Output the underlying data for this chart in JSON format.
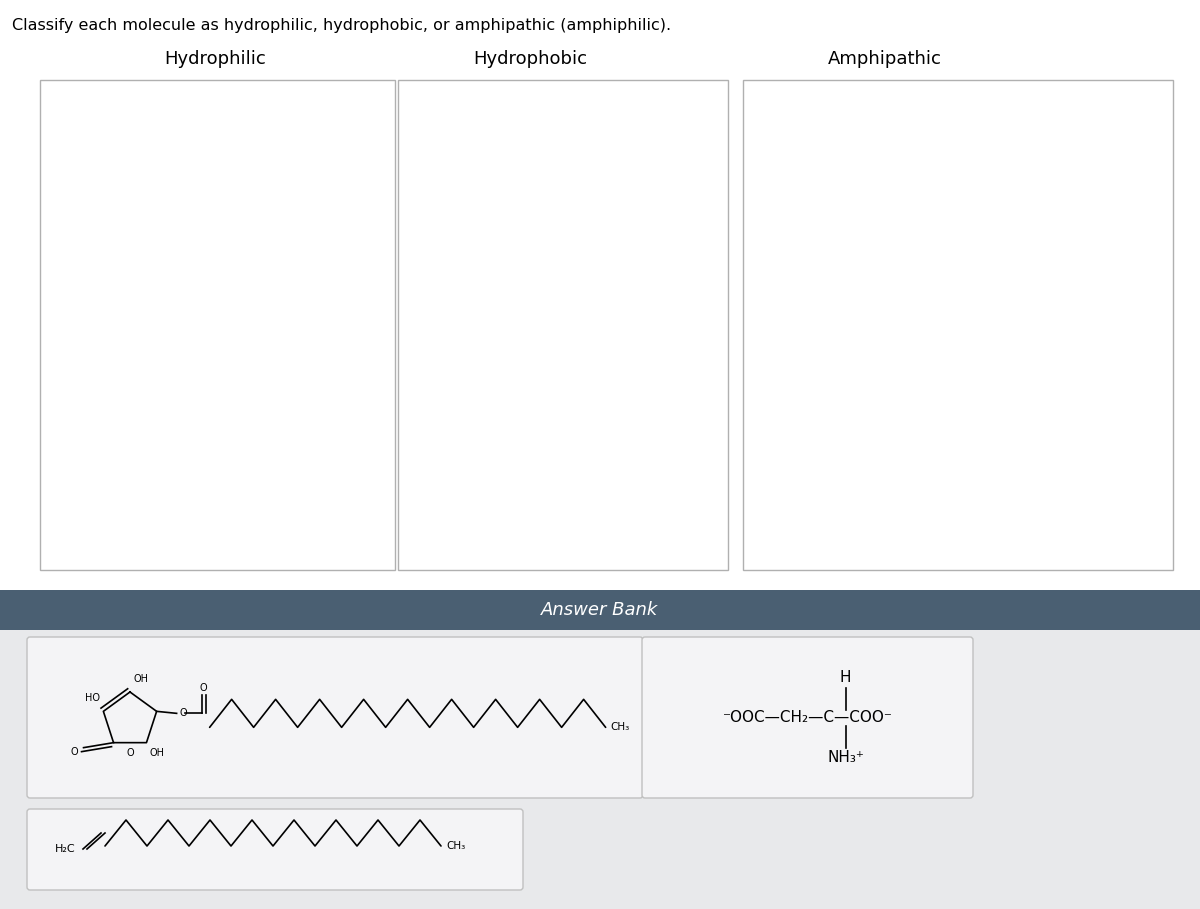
{
  "title": "Classify each molecule as hydrophilic, hydrophobic, or amphipathic (amphiphilic).",
  "title_fontsize": 11.5,
  "categories": [
    "Hydrophilic",
    "Hydrophobic",
    "Amphipathic"
  ],
  "category_fontsize": 13,
  "answer_bank_label": "Answer Bank",
  "answer_bank_header_color": "#4a5f72",
  "page_bg": "#ffffff",
  "answer_area_bg": "#e8e9eb",
  "box_border": "#b0b0b0",
  "mol_box_bg": "#f4f4f6",
  "mol_box_border": "#c0c0c0"
}
